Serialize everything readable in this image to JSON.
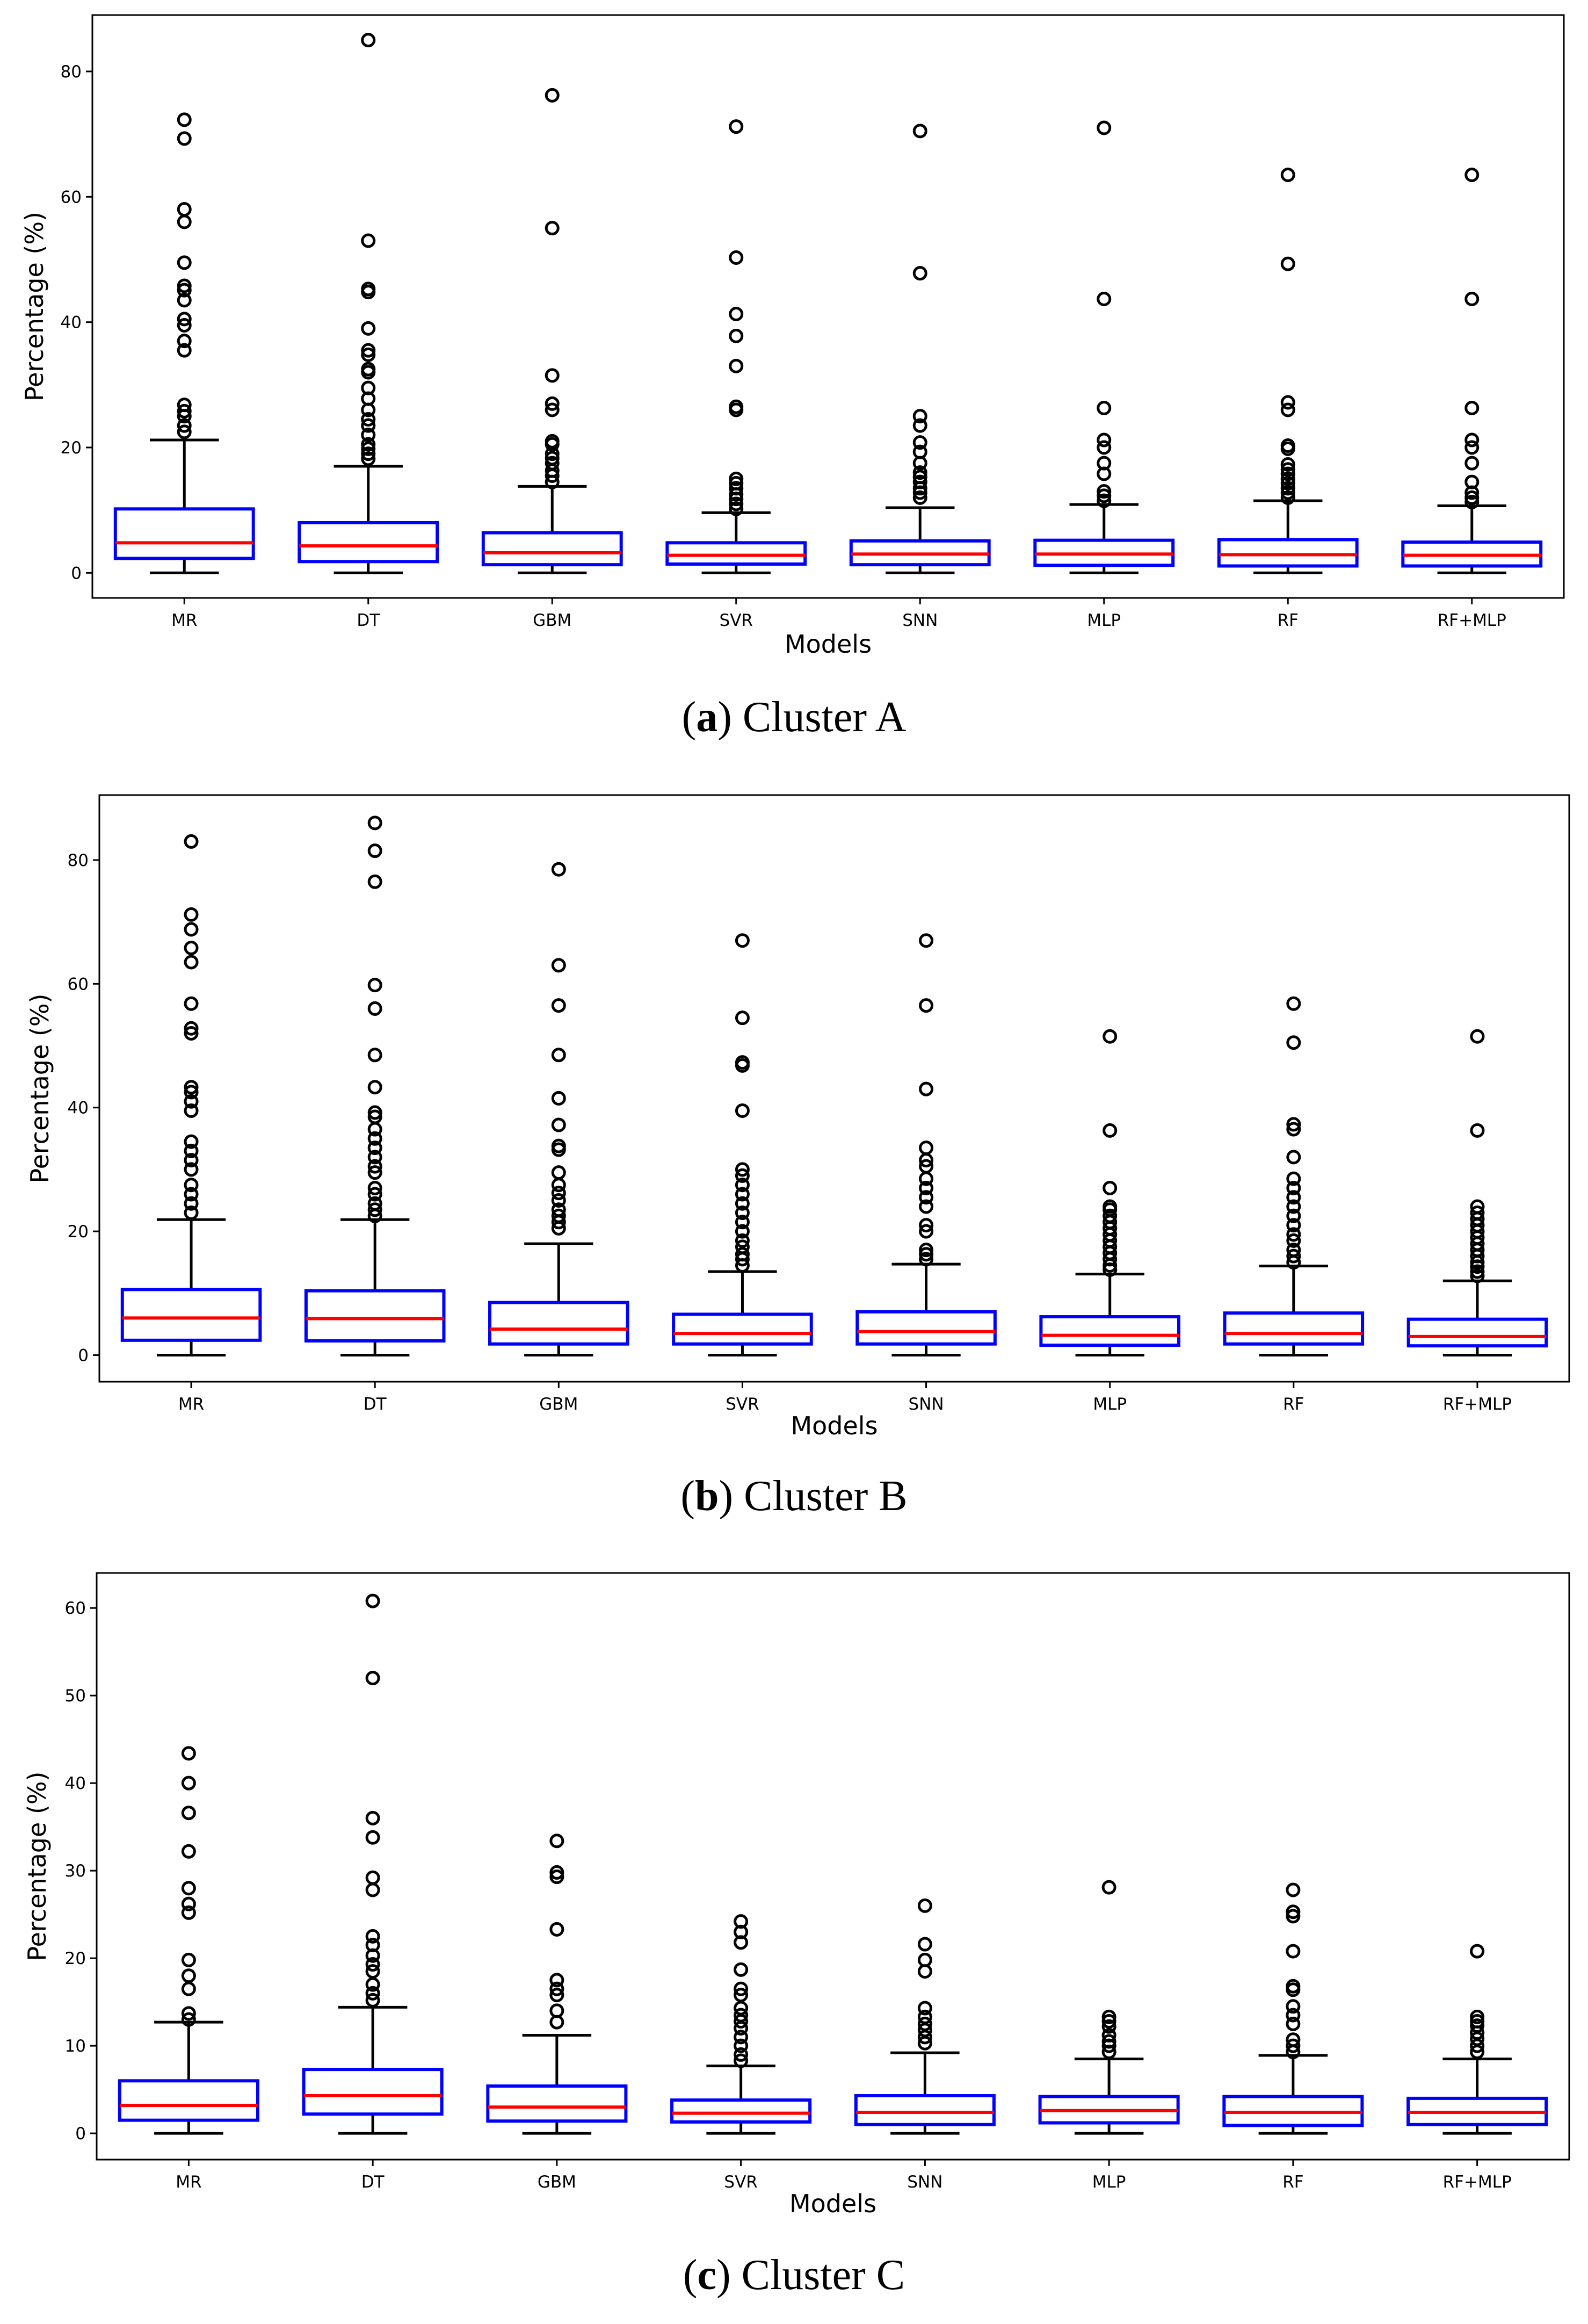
{
  "chart_data": [
    {
      "type": "box",
      "panel": "a",
      "caption_letter": "a",
      "caption_text": "Cluster A",
      "xlabel": "Models",
      "ylabel": "Percentage (%)",
      "ylim": [
        -4,
        89
      ],
      "yticks": [
        "0",
        "20",
        "40",
        "60",
        "80"
      ],
      "ytick_values": [
        0,
        20,
        40,
        60,
        80
      ],
      "categories": [
        "MR",
        "DT",
        "GBM",
        "SVR",
        "SNN",
        "MLP",
        "RF",
        "RF+MLP"
      ],
      "boxes": [
        {
          "min": 0,
          "q1": 2.3,
          "median": 4.8,
          "q3": 10.2,
          "max": 21.2,
          "outliers": [
            22.5,
            23.5,
            25,
            25.8,
            26.8,
            35.5,
            37,
            39.5,
            40.5,
            43.5,
            45.1,
            45.8,
            49.5,
            56,
            58,
            69.3,
            72.3
          ]
        },
        {
          "min": 0,
          "q1": 1.8,
          "median": 4.3,
          "q3": 8.0,
          "max": 17.0,
          "outliers": [
            18.2,
            19,
            19.8,
            20.5,
            22,
            23.5,
            24.5,
            26,
            27.8,
            29.5,
            32,
            32.5,
            34.8,
            35.5,
            39,
            44.8,
            45.3,
            53,
            85
          ]
        },
        {
          "min": 0,
          "q1": 1.3,
          "median": 3.2,
          "q3": 6.4,
          "max": 13.8,
          "outliers": [
            14.5,
            15.5,
            16.3,
            17.5,
            18.3,
            19,
            20.5,
            21,
            26,
            27,
            31.5,
            55,
            76.2
          ]
        },
        {
          "min": 0,
          "q1": 1.4,
          "median": 2.8,
          "q3": 4.8,
          "max": 9.6,
          "outliers": [
            10.2,
            11,
            11.8,
            12.5,
            13.5,
            14.3,
            15,
            26,
            26.5,
            33,
            37.8,
            41.3,
            50.3,
            71.2
          ]
        },
        {
          "min": 0,
          "q1": 1.3,
          "median": 3.0,
          "q3": 5.1,
          "max": 10.4,
          "outliers": [
            12,
            12.8,
            13.5,
            14.5,
            15.3,
            16,
            17.5,
            19.3,
            20.8,
            23.5,
            25,
            47.8,
            70.5
          ]
        },
        {
          "min": 0,
          "q1": 1.2,
          "median": 3.0,
          "q3": 5.2,
          "max": 10.9,
          "outliers": [
            11.5,
            12.3,
            13,
            15.8,
            17.5,
            20,
            21.2,
            26.3,
            43.7,
            71
          ]
        },
        {
          "min": 0,
          "q1": 1.1,
          "median": 2.9,
          "q3": 5.3,
          "max": 11.5,
          "outliers": [
            12,
            12.8,
            13.5,
            14.3,
            15,
            15.8,
            16.5,
            17.3,
            19.8,
            20.3,
            26,
            27.2,
            49.3,
            63.5
          ]
        },
        {
          "min": 0,
          "q1": 1.1,
          "median": 2.8,
          "q3": 4.9,
          "max": 10.7,
          "outliers": [
            11.3,
            12,
            12.8,
            14.5,
            17.5,
            20,
            21.2,
            26.3,
            43.7,
            63.5
          ]
        }
      ]
    },
    {
      "type": "box",
      "panel": "b",
      "caption_letter": "b",
      "caption_text": "Cluster B",
      "xlabel": "Models",
      "ylabel": "Percentage (%)",
      "ylim": [
        -4.3,
        90.5
      ],
      "yticks": [
        "0",
        "20",
        "40",
        "60",
        "80"
      ],
      "ytick_values": [
        0,
        20,
        40,
        60,
        80
      ],
      "categories": [
        "MR",
        "DT",
        "GBM",
        "SVR",
        "SNN",
        "MLP",
        "RF",
        "RF+MLP"
      ],
      "boxes": [
        {
          "min": 0,
          "q1": 2.4,
          "median": 6.0,
          "q3": 10.6,
          "max": 21.9,
          "outliers": [
            23,
            24.5,
            26,
            27.5,
            30,
            31.5,
            33,
            34.5,
            39.5,
            41,
            42.5,
            43.3,
            52,
            52.8,
            56.8,
            63.5,
            65.8,
            68.8,
            71.2,
            83
          ]
        },
        {
          "min": 0,
          "q1": 2.3,
          "median": 5.9,
          "q3": 10.4,
          "max": 21.9,
          "outliers": [
            22.5,
            23.5,
            24.5,
            26,
            27,
            29.5,
            30.5,
            32,
            33.5,
            35,
            36.5,
            38.5,
            39.2,
            43.3,
            48.5,
            56,
            59.8,
            76.5,
            81.5,
            86
          ]
        },
        {
          "min": 0,
          "q1": 1.8,
          "median": 4.2,
          "q3": 8.5,
          "max": 18.0,
          "outliers": [
            20.5,
            21.5,
            22.5,
            23.5,
            25,
            26.2,
            27.5,
            29.5,
            33.2,
            33.8,
            37.2,
            41.5,
            48.5,
            56.5,
            63,
            78.5
          ]
        },
        {
          "min": 0,
          "q1": 1.8,
          "median": 3.5,
          "q3": 6.6,
          "max": 13.5,
          "outliers": [
            14.5,
            15.5,
            16.3,
            17.5,
            18.5,
            20,
            21.5,
            23,
            24.5,
            26,
            27.5,
            29,
            30,
            39.5,
            46.8,
            47.3,
            54.5,
            67
          ]
        },
        {
          "min": 0,
          "q1": 1.8,
          "median": 3.8,
          "q3": 7.0,
          "max": 14.7,
          "outliers": [
            15.5,
            16.3,
            17,
            20,
            21,
            24,
            25.5,
            27,
            28.5,
            30.5,
            31.5,
            33.5,
            43,
            56.5,
            67
          ]
        },
        {
          "min": 0,
          "q1": 1.6,
          "median": 3.2,
          "q3": 6.2,
          "max": 13.1,
          "outliers": [
            13.8,
            14.5,
            15.5,
            16.5,
            17.5,
            18.5,
            19.5,
            20.5,
            21.5,
            22.5,
            23.5,
            24,
            27,
            36.3,
            51.5
          ]
        },
        {
          "min": 0,
          "q1": 1.8,
          "median": 3.5,
          "q3": 6.8,
          "max": 14.4,
          "outliers": [
            15,
            16,
            17,
            18.5,
            19.5,
            21,
            22.5,
            24,
            25.5,
            27,
            28.5,
            32,
            36.5,
            37.3,
            50.5,
            56.8
          ]
        },
        {
          "min": 0,
          "q1": 1.5,
          "median": 3.0,
          "q3": 5.8,
          "max": 12.0,
          "outliers": [
            12.8,
            13.5,
            14.3,
            15,
            16,
            17,
            18,
            19,
            20,
            21,
            22,
            23,
            24,
            36.3,
            51.5
          ]
        }
      ]
    },
    {
      "type": "box",
      "panel": "c",
      "caption_letter": "c",
      "caption_text": "Cluster C",
      "xlabel": "Models",
      "ylabel": "Percentage (%)",
      "ylim": [
        -3,
        64
      ],
      "yticks": [
        "0",
        "10",
        "20",
        "30",
        "40",
        "50",
        "60"
      ],
      "ytick_values": [
        0,
        10,
        20,
        30,
        40,
        50,
        60
      ],
      "categories": [
        "MR",
        "DT",
        "GBM",
        "SVR",
        "SNN",
        "MLP",
        "RF",
        "RF+MLP"
      ],
      "boxes": [
        {
          "min": 0,
          "q1": 1.5,
          "median": 3.2,
          "q3": 6.0,
          "max": 12.7,
          "outliers": [
            13,
            13.7,
            16.5,
            18,
            19.8,
            25.2,
            26.2,
            28,
            32.2,
            36.6,
            40,
            43.4
          ]
        },
        {
          "min": 0,
          "q1": 2.2,
          "median": 4.3,
          "q3": 7.3,
          "max": 14.4,
          "outliers": [
            15.2,
            16,
            17,
            18.5,
            19.3,
            20.3,
            21.5,
            22.5,
            27.8,
            29.2,
            33.8,
            36,
            52,
            60.8
          ]
        },
        {
          "min": 0,
          "q1": 1.4,
          "median": 3.0,
          "q3": 5.4,
          "max": 11.2,
          "outliers": [
            12.7,
            14,
            15.8,
            16.5,
            17.5,
            23.3,
            29.3,
            29.8,
            33.4
          ]
        },
        {
          "min": 0,
          "q1": 1.3,
          "median": 2.3,
          "q3": 3.8,
          "max": 7.7,
          "outliers": [
            8.3,
            9,
            10,
            11,
            12,
            12.8,
            13.5,
            14.3,
            15.8,
            16.5,
            18.7,
            21.8,
            23,
            24.2
          ]
        },
        {
          "min": 0,
          "q1": 1.0,
          "median": 2.4,
          "q3": 4.3,
          "max": 9.2,
          "outliers": [
            10.3,
            11,
            11.8,
            12.5,
            13.3,
            14.3,
            18.5,
            19.8,
            21.6,
            26
          ]
        },
        {
          "min": 0,
          "q1": 1.2,
          "median": 2.6,
          "q3": 4.2,
          "max": 8.5,
          "outliers": [
            9.3,
            10,
            10.5,
            11.2,
            12.2,
            12.8,
            13.3,
            28.1
          ]
        },
        {
          "min": 0,
          "q1": 0.9,
          "median": 2.4,
          "q3": 4.2,
          "max": 8.9,
          "outliers": [
            9.3,
            10,
            10.7,
            12.5,
            13.5,
            14.5,
            16.4,
            16.8,
            20.8,
            24.8,
            25.3,
            27.8
          ]
        },
        {
          "min": 0,
          "q1": 1.0,
          "median": 2.4,
          "q3": 4.0,
          "max": 8.5,
          "outliers": [
            9.3,
            10,
            10.8,
            11.5,
            12.3,
            12.8,
            13.3,
            20.8
          ]
        }
      ]
    }
  ]
}
